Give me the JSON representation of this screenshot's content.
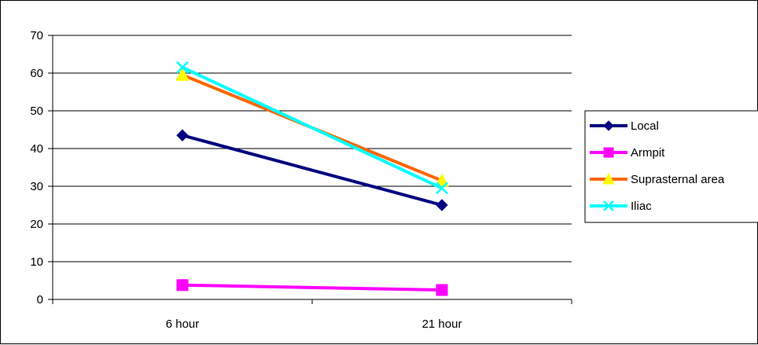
{
  "chart_data": {
    "type": "line",
    "categories": [
      "6 hour",
      "21 hour"
    ],
    "ylim": [
      0,
      70
    ],
    "yticks": [
      0,
      10,
      20,
      30,
      40,
      50,
      60,
      70
    ],
    "grid": true,
    "legend_position": "right",
    "series": [
      {
        "name": "Local",
        "values": [
          43.5,
          25
        ],
        "color": "#000080",
        "marker": "diamond"
      },
      {
        "name": "Armpit",
        "values": [
          3.8,
          2.5
        ],
        "color": "#FF00FF",
        "marker": "square"
      },
      {
        "name": "Suprasternal area",
        "values": [
          59.5,
          31.5
        ],
        "color": "#FF6600",
        "marker": "triangle",
        "marker_color": "#FFFF00"
      },
      {
        "name": "Iliac",
        "values": [
          61.5,
          29.5
        ],
        "color": "#00FFFF",
        "marker": "x"
      }
    ]
  }
}
